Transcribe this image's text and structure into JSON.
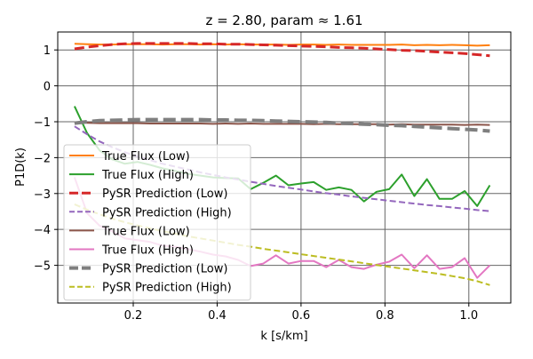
{
  "chart_data": {
    "type": "line",
    "title": "z = 2.80, param ≈ 1.61",
    "xlabel": "k [s/km]",
    "ylabel": "P1D(k)",
    "xlim": [
      0.02,
      1.1
    ],
    "ylim": [
      -6.05,
      1.5
    ],
    "xticks": [
      0.2,
      0.4,
      0.6,
      0.8,
      1.0
    ],
    "xtick_labels": [
      "0.2",
      "0.4",
      "0.6",
      "0.8",
      "1.0"
    ],
    "yticks": [
      1,
      0,
      -1,
      -2,
      -3,
      -4,
      -5
    ],
    "ytick_labels": [
      "1",
      "0",
      "−1",
      "−2",
      "−3",
      "−4",
      "−5"
    ],
    "grid": true,
    "legend_position": "lower-left",
    "x": [
      0.06,
      0.09,
      0.12,
      0.15,
      0.18,
      0.21,
      0.24,
      0.27,
      0.3,
      0.33,
      0.36,
      0.39,
      0.42,
      0.45,
      0.48,
      0.51,
      0.54,
      0.57,
      0.6,
      0.63,
      0.66,
      0.69,
      0.72,
      0.75,
      0.78,
      0.81,
      0.84,
      0.87,
      0.9,
      0.93,
      0.96,
      0.99,
      1.02,
      1.05
    ],
    "series": [
      {
        "name": "True Flux (Low)",
        "color": "#ff7f0e",
        "style": "solid",
        "width": 2,
        "values": [
          1.17,
          1.16,
          1.15,
          1.15,
          1.16,
          1.16,
          1.16,
          1.15,
          1.16,
          1.16,
          1.15,
          1.16,
          1.15,
          1.16,
          1.15,
          1.15,
          1.15,
          1.14,
          1.15,
          1.15,
          1.14,
          1.15,
          1.14,
          1.14,
          1.14,
          1.14,
          1.15,
          1.13,
          1.14,
          1.13,
          1.14,
          1.13,
          1.12,
          1.13
        ]
      },
      {
        "name": "True Flux (High)",
        "color": "#2ca02c",
        "style": "solid",
        "width": 2,
        "values": [
          -0.57,
          -1.32,
          -1.8,
          -2.05,
          -2.17,
          -2.12,
          -2.2,
          -2.3,
          -2.37,
          -2.45,
          -2.5,
          -2.55,
          -2.57,
          -2.58,
          -2.88,
          -2.7,
          -2.5,
          -2.77,
          -2.72,
          -2.68,
          -2.9,
          -2.83,
          -2.9,
          -3.22,
          -2.95,
          -2.88,
          -2.47,
          -3.07,
          -2.6,
          -3.15,
          -3.15,
          -2.93,
          -3.35,
          -2.77
        ]
      },
      {
        "name": "PySR Prediction (Low)",
        "color": "#d62728",
        "style": "dash",
        "width": 3,
        "values": [
          1.03,
          1.08,
          1.12,
          1.15,
          1.17,
          1.18,
          1.18,
          1.18,
          1.18,
          1.18,
          1.17,
          1.17,
          1.16,
          1.16,
          1.15,
          1.14,
          1.13,
          1.12,
          1.11,
          1.1,
          1.09,
          1.07,
          1.06,
          1.05,
          1.03,
          1.01,
          0.99,
          0.98,
          0.96,
          0.94,
          0.92,
          0.9,
          0.87,
          0.84
        ]
      },
      {
        "name": "PySR Prediction (High)",
        "color": "#9467bd",
        "style": "dash",
        "width": 2,
        "values": [
          -1.13,
          -1.35,
          -1.55,
          -1.71,
          -1.85,
          -1.97,
          -2.07,
          -2.17,
          -2.25,
          -2.33,
          -2.41,
          -2.48,
          -2.55,
          -2.61,
          -2.67,
          -2.73,
          -2.79,
          -2.84,
          -2.89,
          -2.94,
          -2.99,
          -3.03,
          -3.08,
          -3.12,
          -3.16,
          -3.2,
          -3.24,
          -3.28,
          -3.32,
          -3.35,
          -3.39,
          -3.42,
          -3.46,
          -3.49
        ]
      },
      {
        "name": "True Flux (Low)",
        "color": "#8c564b",
        "style": "solid",
        "width": 2,
        "values": [
          -1.02,
          -1.03,
          -1.04,
          -1.04,
          -1.04,
          -1.04,
          -1.05,
          -1.05,
          -1.05,
          -1.05,
          -1.05,
          -1.06,
          -1.05,
          -1.06,
          -1.05,
          -1.06,
          -1.06,
          -1.06,
          -1.06,
          -1.07,
          -1.06,
          -1.07,
          -1.07,
          -1.07,
          -1.07,
          -1.08,
          -1.07,
          -1.08,
          -1.08,
          -1.08,
          -1.08,
          -1.09,
          -1.08,
          -1.09
        ]
      },
      {
        "name": "True Flux (High)",
        "color": "#e377c2",
        "style": "solid",
        "width": 2,
        "values": [
          -2.55,
          -3.55,
          -3.9,
          -4.05,
          -4.25,
          -4.3,
          -4.35,
          -4.45,
          -4.48,
          -4.55,
          -4.62,
          -4.7,
          -4.75,
          -4.85,
          -5.02,
          -4.95,
          -4.72,
          -4.95,
          -4.88,
          -4.88,
          -5.05,
          -4.85,
          -5.05,
          -5.1,
          -4.98,
          -4.9,
          -4.7,
          -5.08,
          -4.72,
          -5.1,
          -5.05,
          -4.8,
          -5.35,
          -5.0
        ]
      },
      {
        "name": "PySR Prediction (Low)",
        "color": "#7f7f7f",
        "style": "dash",
        "width": 4,
        "values": [
          -1.04,
          -1.0,
          -0.97,
          -0.96,
          -0.95,
          -0.94,
          -0.94,
          -0.94,
          -0.94,
          -0.94,
          -0.94,
          -0.95,
          -0.95,
          -0.96,
          -0.96,
          -0.97,
          -0.98,
          -0.99,
          -1.0,
          -1.01,
          -1.02,
          -1.04,
          -1.05,
          -1.07,
          -1.08,
          -1.1,
          -1.11,
          -1.13,
          -1.15,
          -1.17,
          -1.19,
          -1.21,
          -1.23,
          -1.26
        ]
      },
      {
        "name": "PySR Prediction (High)",
        "color": "#bcbd22",
        "style": "dash",
        "width": 2,
        "values": [
          -3.3,
          -3.45,
          -3.58,
          -3.7,
          -3.8,
          -3.89,
          -3.97,
          -4.05,
          -4.12,
          -4.19,
          -4.25,
          -4.31,
          -4.37,
          -4.43,
          -4.48,
          -4.54,
          -4.59,
          -4.64,
          -4.69,
          -4.74,
          -4.79,
          -4.84,
          -4.89,
          -4.94,
          -4.99,
          -5.04,
          -5.09,
          -5.14,
          -5.19,
          -5.24,
          -5.3,
          -5.36,
          -5.44,
          -5.55
        ]
      }
    ]
  }
}
